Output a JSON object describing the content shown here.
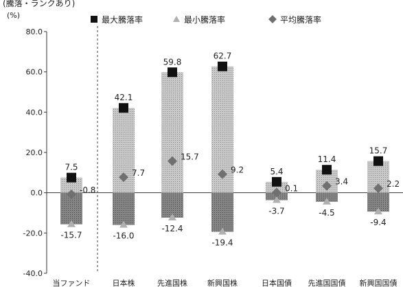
{
  "chart_data": {
    "type": "bar",
    "header_note": "(騰落・ランクあり)",
    "ylabel": "(%)",
    "ylim": [
      -40,
      80
    ],
    "yticks": [
      "80.0",
      "60.0",
      "40.0",
      "20.0",
      "0.0",
      "-20.0",
      "-40.0"
    ],
    "categories": [
      "当ファンド",
      "日本株",
      "先進国株",
      "新興国株",
      "日本国債",
      "先進国国債",
      "新興国国債"
    ],
    "series": [
      {
        "name": "最大騰落率",
        "values": [
          7.5,
          42.1,
          59.8,
          62.7,
          5.4,
          11.4,
          15.7
        ],
        "labels": [
          "7.5",
          "42.1",
          "59.8",
          "62.7",
          "5.4",
          "11.4",
          "15.7"
        ]
      },
      {
        "name": "最小騰落率",
        "values": [
          -15.7,
          -16.0,
          -12.4,
          -19.4,
          -3.7,
          -4.5,
          -9.4
        ],
        "labels": [
          "-15.7",
          "-16.0",
          "-12.4",
          "-19.4",
          "-3.7",
          "-4.5",
          "-9.4"
        ]
      },
      {
        "name": "平均騰落率",
        "values": [
          -0.8,
          7.7,
          15.7,
          9.2,
          0.1,
          3.4,
          2.2
        ],
        "labels": [
          "-0.8",
          "7.7",
          "15.7",
          "9.2",
          "0.1",
          "3.4",
          "2.2"
        ]
      }
    ],
    "legend_position": "top",
    "grid": false,
    "colors": {
      "positive_bar": "#bdbdbd",
      "negative_bar": "#7d7d7d",
      "max_marker": "#111111",
      "min_marker": "#b0b0b0",
      "avg_marker": "#707070"
    }
  }
}
